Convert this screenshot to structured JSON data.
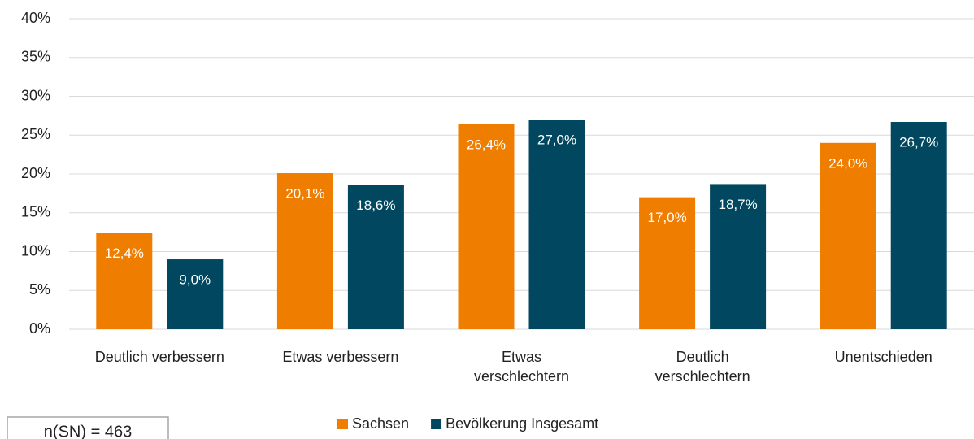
{
  "chart_data": {
    "type": "bar",
    "categories": [
      "Deutlich verbessern",
      "Etwas verbessern",
      "Etwas\nverschlechtern",
      "Deutlich\nverschlechtern",
      "Unentschieden"
    ],
    "series": [
      {
        "name": "Sachsen",
        "color": "#ee7d00",
        "values": [
          12.4,
          20.1,
          26.4,
          17.0,
          24.0
        ],
        "value_labels": [
          "12,4%",
          "20,1%",
          "26,4%",
          "17,0%",
          "24,0%"
        ]
      },
      {
        "name": "Bevölkerung Insgesamt",
        "color": "#00475f",
        "values": [
          9.0,
          18.6,
          27.0,
          18.7,
          26.7
        ],
        "value_labels": [
          "9,0%",
          "18,6%",
          "27,0%",
          "18,7%",
          "26,7%"
        ]
      }
    ],
    "ylim": [
      0,
      40
    ],
    "yticks": [
      {
        "value": 0,
        "label": "0%"
      },
      {
        "value": 5,
        "label": "5%"
      },
      {
        "value": 10,
        "label": "10%"
      },
      {
        "value": 15,
        "label": "15%"
      },
      {
        "value": 20,
        "label": "20%"
      },
      {
        "value": 25,
        "label": "25%"
      },
      {
        "value": 30,
        "label": "30%"
      },
      {
        "value": 35,
        "label": "35%"
      },
      {
        "value": 40,
        "label": "40%"
      }
    ],
    "grid": true,
    "legend": "bottom",
    "annotation": "n(SN) = 463"
  }
}
